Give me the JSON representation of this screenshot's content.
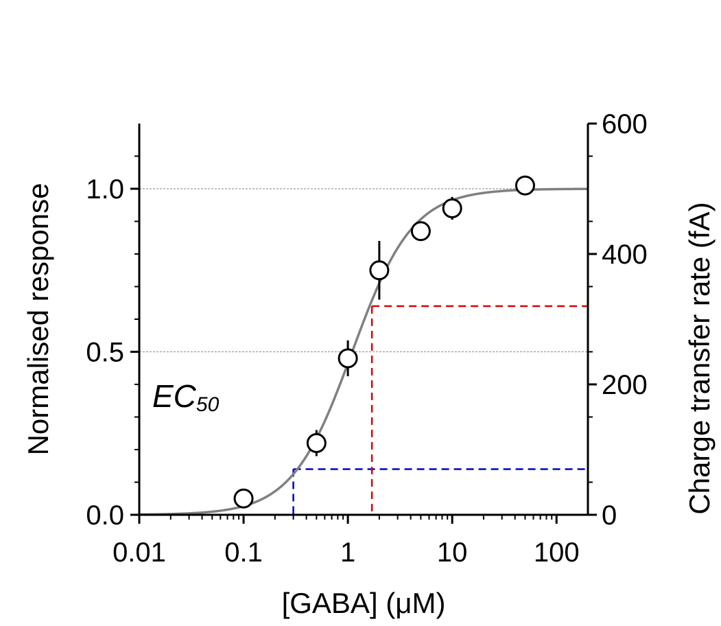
{
  "chart_data": {
    "type": "scatter",
    "xlabel": "[GABA] (μM)",
    "ylabel": "Normalised response",
    "y2label": "Charge transfer rate (fA)",
    "xscale": "log",
    "xlim": [
      0.01,
      200
    ],
    "ylim": [
      0,
      1.2
    ],
    "y2lim": [
      0,
      600
    ],
    "x_ticks": [
      0.01,
      0.1,
      1,
      10,
      100
    ],
    "x_tick_labels": [
      "0.01",
      "0.1",
      "1",
      "10",
      "100"
    ],
    "y_ticks": [
      0,
      0.5,
      1.0
    ],
    "y_tick_labels": [
      "0.0",
      "0.5",
      "1.0"
    ],
    "y2_ticks": [
      0,
      200,
      400,
      600
    ],
    "y2_tick_labels": [
      "0",
      "200",
      "400",
      "600"
    ],
    "reference_lines_y": [
      0.5,
      1.0
    ],
    "annotation": {
      "main": "EC",
      "subscript": "50"
    },
    "points": [
      {
        "x": 0.1,
        "y": 0.05,
        "err": 0.015
      },
      {
        "x": 0.5,
        "y": 0.22,
        "err": 0.04
      },
      {
        "x": 1.0,
        "y": 0.48,
        "err": 0.055
      },
      {
        "x": 2.0,
        "y": 0.75,
        "err": 0.09
      },
      {
        "x": 5.0,
        "y": 0.87,
        "err": 0.02
      },
      {
        "x": 10.0,
        "y": 0.94,
        "err": 0.035
      },
      {
        "x": 50.0,
        "y": 1.01,
        "err": 0.015
      }
    ],
    "fit": {
      "ec50": 1.1,
      "hill": 1.5,
      "max": 1.0,
      "color": "#808080"
    },
    "threshold_lines": [
      {
        "x": 0.3,
        "y": 0.14,
        "color": "#0000cc"
      },
      {
        "x": 1.7,
        "y": 0.64,
        "color": "#dd0000"
      }
    ]
  }
}
